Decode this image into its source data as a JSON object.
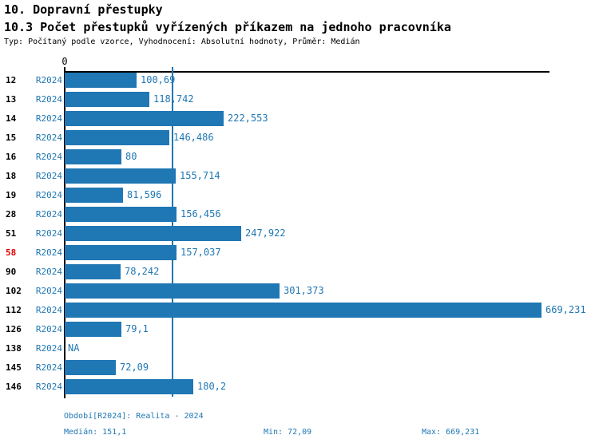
{
  "header": {
    "section_title": "10. Dopravní přestupky",
    "chart_title": "10.3 Počet přestupků vyřízených příkazem na jednoho pracovníka",
    "meta": "Typ: Počítaný podle vzorce, Vyhodnocení: Absolutní hodnoty, Průměr: Medián"
  },
  "chart_data": {
    "type": "bar",
    "orientation": "horizontal",
    "x_axis": {
      "tick_labels": [
        "0"
      ],
      "xlim": [
        0,
        680
      ],
      "grid": false
    },
    "categories": [
      "12",
      "13",
      "14",
      "15",
      "16",
      "18",
      "19",
      "28",
      "51",
      "58",
      "90",
      "102",
      "112",
      "126",
      "138",
      "145",
      "146"
    ],
    "series": [
      {
        "name": "R2024",
        "values": [
          100.69,
          118.742,
          222.553,
          146.486,
          80,
          155.714,
          81.596,
          156.456,
          247.922,
          157.037,
          78.242,
          301.373,
          669.231,
          79.1,
          null,
          72.09,
          180.2
        ],
        "value_labels": [
          "100,69",
          "118,742",
          "222,553",
          "146,486",
          "80",
          "155,714",
          "81,596",
          "156,456",
          "247,922",
          "157,037",
          "78,242",
          "301,373",
          "669,231",
          "79,1",
          "NA",
          "72,09",
          "180,2"
        ]
      }
    ],
    "highlighted_category": "58",
    "median_line_value": 151.1,
    "median": 151.1,
    "min": 72.09,
    "max": 669.231,
    "legend_position": "none"
  },
  "footer": {
    "period_label": "Období[R2024]: Realita - 2024",
    "median_label": "Medián: 151,1",
    "min_label": "Min: 72,09",
    "max_label": "Max: 669,231"
  },
  "colors": {
    "bar": "#1f77b4",
    "blue_text": "#1f77b4",
    "highlight_red": "#e00000",
    "axis": "#000000",
    "background": "#ffffff"
  }
}
